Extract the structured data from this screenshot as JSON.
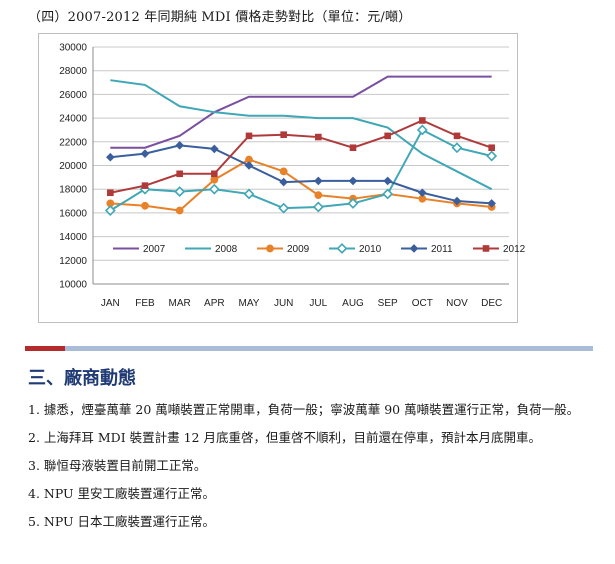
{
  "page_title": "（四）2007-2012 年同期純 MDI 價格走勢對比（單位：元/噸）",
  "chart_data": {
    "type": "line",
    "categories": [
      "JAN",
      "FEB",
      "MAR",
      "APR",
      "MAY",
      "JUN",
      "JUL",
      "AUG",
      "SEP",
      "OCT",
      "NOV",
      "DEC"
    ],
    "ylim": [
      10000,
      30000
    ],
    "yticks": [
      10000,
      12000,
      14000,
      16000,
      18000,
      20000,
      22000,
      24000,
      26000,
      28000,
      30000
    ],
    "grid": true,
    "legend_position": "bottom-left inside plot",
    "series": [
      {
        "name": "2007",
        "color": "#7b4fa0",
        "marker": "none",
        "values": [
          21500,
          21500,
          22500,
          24500,
          25800,
          25800,
          25800,
          25800,
          27500,
          27500,
          27500,
          27500
        ]
      },
      {
        "name": "2008",
        "color": "#3fa7b5",
        "marker": "none",
        "values": [
          27200,
          26800,
          25000,
          24500,
          24200,
          24200,
          24000,
          24000,
          23200,
          21000,
          19500,
          18000
        ]
      },
      {
        "name": "2009",
        "color": "#e8822a",
        "marker": "circle",
        "values": [
          16800,
          16600,
          16200,
          18800,
          20500,
          19500,
          17500,
          17200,
          17600,
          17200,
          16800,
          16500
        ]
      },
      {
        "name": "2010",
        "color": "#3fa7b5",
        "marker": "diamond-open",
        "values": [
          16200,
          18000,
          17800,
          18000,
          17600,
          16400,
          16500,
          16800,
          17600,
          23000,
          21500,
          20800
        ]
      },
      {
        "name": "2011",
        "color": "#3a5f9c",
        "marker": "diamond",
        "values": [
          20700,
          21000,
          21700,
          21400,
          20000,
          18600,
          18700,
          18700,
          18700,
          17700,
          17000,
          16800
        ]
      },
      {
        "name": "2012",
        "color": "#b03a3a",
        "marker": "square",
        "values": [
          17700,
          18300,
          19300,
          19300,
          22500,
          22600,
          22400,
          21500,
          22500,
          23800,
          22500,
          21500
        ]
      }
    ]
  },
  "section_title": "三、廠商動態",
  "items": [
    "1. 據悉，煙臺萬華 20 萬噸裝置正常開車，負荷一般；寧波萬華 90 萬噸裝置運行正常，負荷一般。",
    "2. 上海拜耳 MDI 裝置計畫 12 月底重啓，但重啓不順利，目前還在停車，預計本月底開車。",
    "3. 聯恒母液裝置目前開工正常。",
    "4. NPU 里安工廠裝置運行正常。",
    "5. NPU 日本工廠裝置運行正常。"
  ]
}
